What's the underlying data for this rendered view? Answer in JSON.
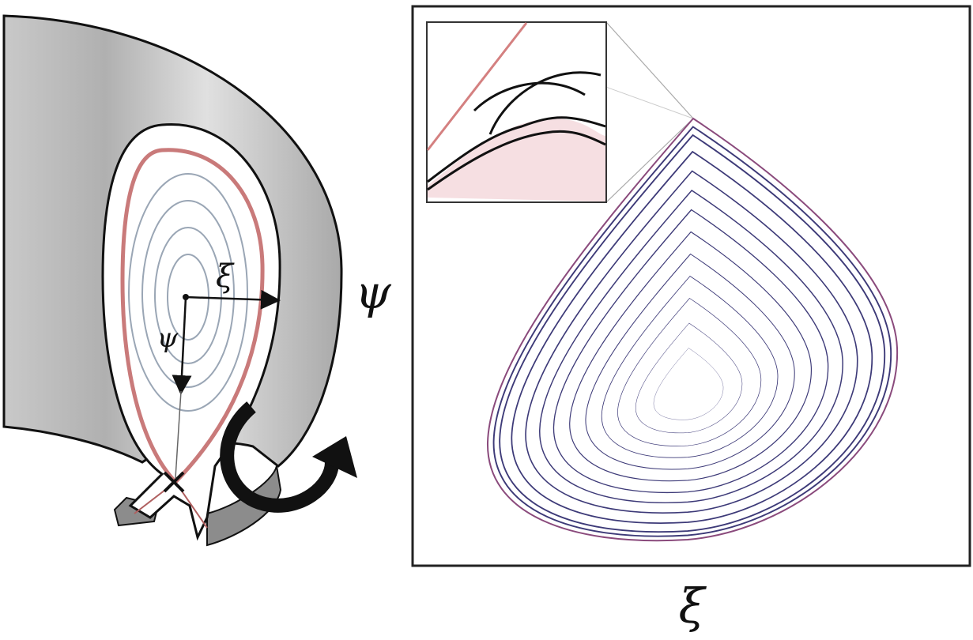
{
  "left_panel": {
    "labels": [
      "ψ",
      "ξ",
      "ψ"
    ]
  },
  "right_panel": {
    "axis_label": "ξ"
  }
}
